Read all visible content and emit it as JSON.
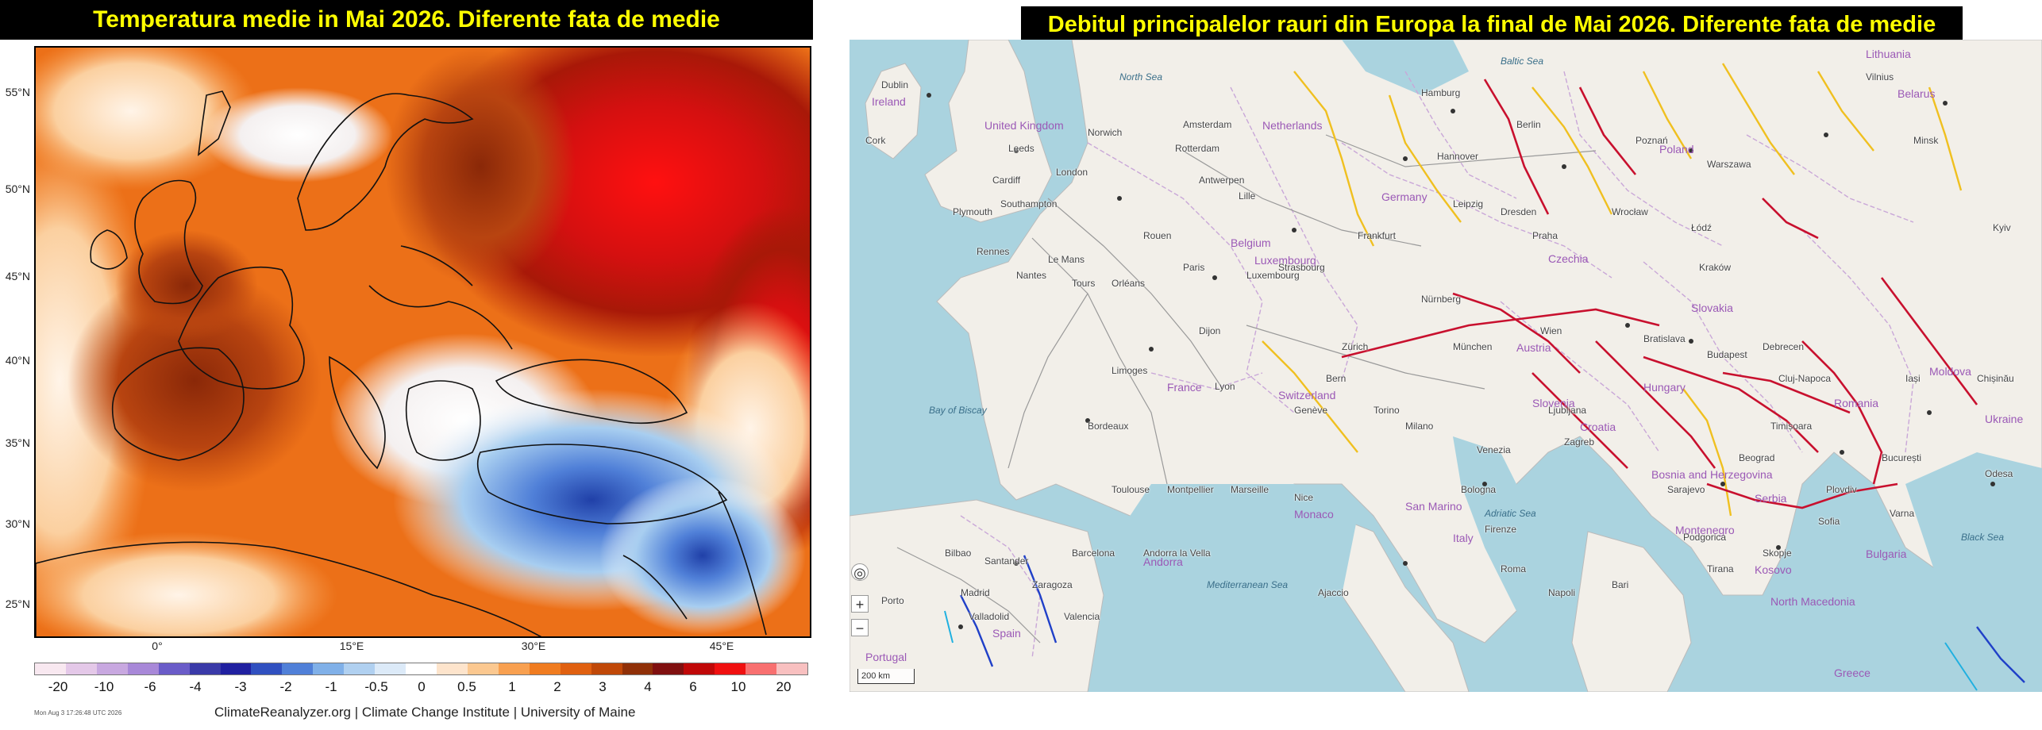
{
  "left": {
    "title": "Temperatura medie in Mai 2026. Diferente fata de medie",
    "lat_labels": [
      "55°N",
      "50°N",
      "45°N",
      "40°N",
      "35°N",
      "30°N",
      "25°N"
    ],
    "lon_labels": [
      "0°",
      "15°E",
      "30°E",
      "45°E"
    ],
    "colorbar_ticks": [
      "-20",
      "-10",
      "-6",
      "-4",
      "-3",
      "-2",
      "-1",
      "-0.5",
      "0",
      "0.5",
      "1",
      "2",
      "3",
      "4",
      "6",
      "10",
      "20"
    ],
    "colorbar_colors": [
      "#f8e8f0",
      "#e4c8e8",
      "#c8a8e0",
      "#a888d8",
      "#6a5cc8",
      "#3a3aa8",
      "#2020a0",
      "#3050c0",
      "#5080d8",
      "#80b0e8",
      "#b0d0f0",
      "#dceaf8",
      "#ffffff",
      "#fde4cc",
      "#fbc890",
      "#f8a050",
      "#f07c20",
      "#e06010",
      "#c04808",
      "#903008",
      "#801010",
      "#c00808",
      "#f01010",
      "#f87070",
      "#f8c0c0"
    ],
    "timestamp": "Mon Aug 3 17:26:48 UTC 2026",
    "credit": "ClimateReanalyzer.org | Climate Change Institute | University of Maine"
  },
  "right": {
    "title": "Debitul principalelor rauri din Europa la final de Mai 2026. Diferente fata de medie",
    "scale_label": "200 km",
    "zoom_in": "+",
    "zoom_out": "−",
    "countries": [
      "United Kingdom",
      "Ireland",
      "France",
      "Belgium",
      "Netherlands",
      "Germany",
      "Luxembourg",
      "Switzerland",
      "Austria",
      "Czechia",
      "Slovakia",
      "Poland",
      "Hungary",
      "Romania",
      "Moldova",
      "Ukraine",
      "Belarus",
      "Serbia",
      "Croatia",
      "Bosnia and Herzegovina",
      "Montenegro",
      "Kosovo",
      "North Macedonia",
      "Bulgaria",
      "Greece",
      "Italy",
      "Spain",
      "Portugal",
      "Andorra",
      "Monaco",
      "San Marino",
      "Slovenia",
      "Lithuania"
    ],
    "cities": [
      "Dublin",
      "Cork",
      "Leeds",
      "Norwich",
      "London",
      "Cardiff",
      "Plymouth",
      "Southampton",
      "Amsterdam",
      "Rotterdam",
      "Antwerpen",
      "Lille",
      "Rouen",
      "Paris",
      "Rennes",
      "Nantes",
      "Tours",
      "Orléans",
      "Le Mans",
      "Dijon",
      "Lyon",
      "Limoges",
      "Bordeaux",
      "Toulouse",
      "Montpellier",
      "Marseille",
      "Nice",
      "Strasbourg",
      "Luxembourg",
      "Frankfurt",
      "Nürnberg",
      "München",
      "Zürich",
      "Bern",
      "Genève",
      "Milano",
      "Torino",
      "Venezia",
      "Bologna",
      "Firenze",
      "Roma",
      "Napoli",
      "Bari",
      "Ljubljana",
      "Zagreb",
      "Wien",
      "Praha",
      "Berlin",
      "Hamburg",
      "Hannover",
      "Leipzig",
      "Dresden",
      "Wrocław",
      "Poznań",
      "Warszawa",
      "Łódź",
      "Kraków",
      "Bratislava",
      "Budapest",
      "Debrecen",
      "Cluj-Napoca",
      "Timișoara",
      "București",
      "Iași",
      "Chișinău",
      "Odesa",
      "Kyiv",
      "Minsk",
      "Vilnius",
      "Beograd",
      "Sarajevo",
      "Podgorica",
      "Tirana",
      "Skopje",
      "Sofia",
      "Plovdiv",
      "Varna",
      "Barcelona",
      "Zaragoza",
      "Valencia",
      "Madrid",
      "Valladolid",
      "Santander",
      "Bilbao",
      "Porto",
      "Andorra la Vella",
      "Ajaccio"
    ],
    "seas": [
      "Baltic Sea",
      "North Sea",
      "Mediterranean Sea",
      "Adriatic Sea",
      "Black Sea",
      "Bay of Biscay"
    ]
  }
}
